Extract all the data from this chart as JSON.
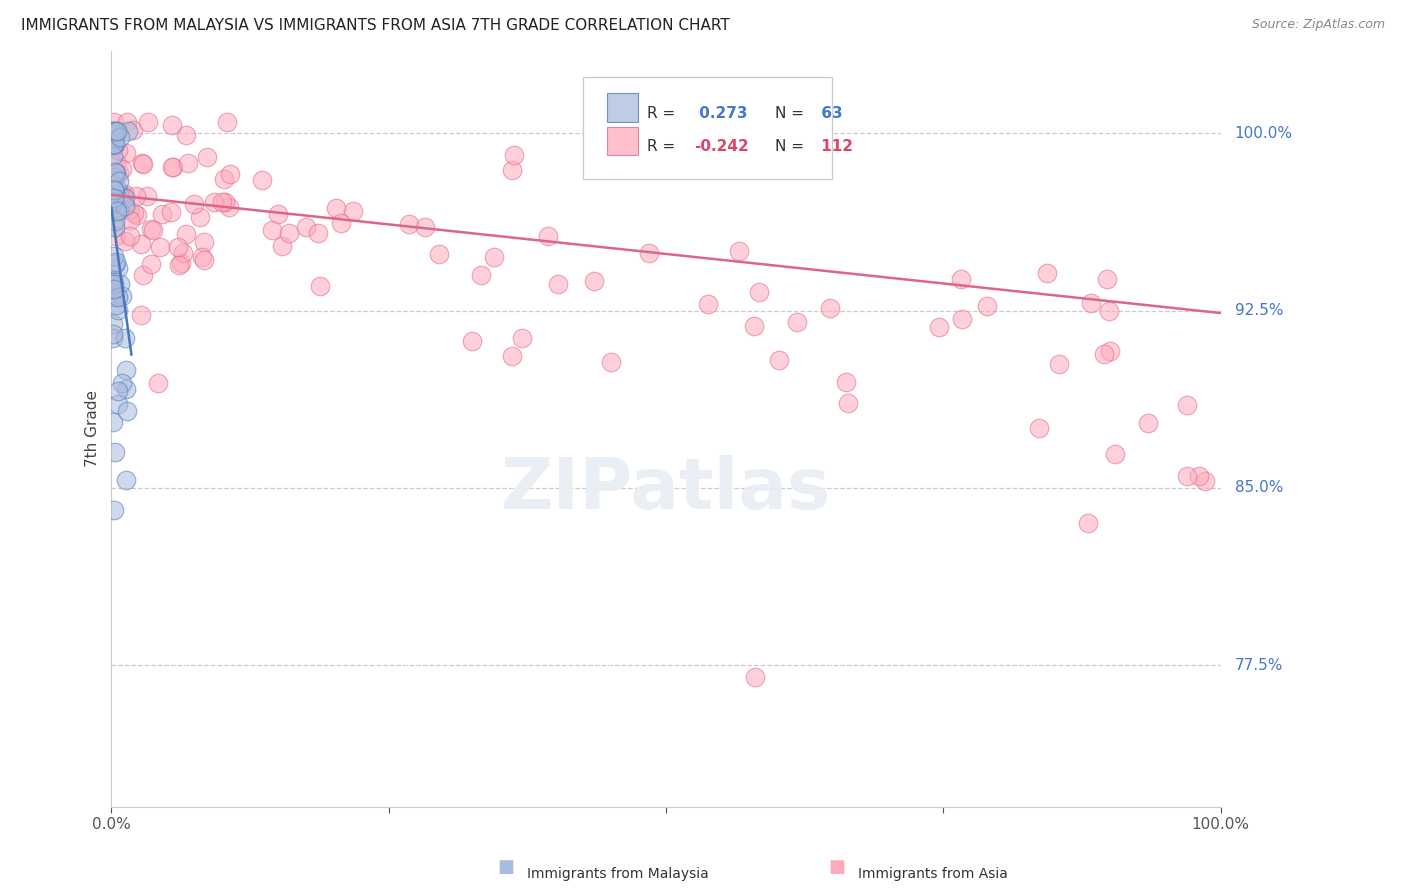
{
  "title": "IMMIGRANTS FROM MALAYSIA VS IMMIGRANTS FROM ASIA 7TH GRADE CORRELATION CHART",
  "source": "Source: ZipAtlas.com",
  "ylabel": "7th Grade",
  "ytick_labels": [
    "100.0%",
    "92.5%",
    "85.0%",
    "77.5%"
  ],
  "ytick_values": [
    1.0,
    0.925,
    0.85,
    0.775
  ],
  "xlim": [
    0.0,
    1.0
  ],
  "ylim": [
    0.715,
    1.035
  ],
  "blue_color": "#4477bb",
  "pink_color": "#dd6688",
  "blue_face_color": "#aabbdd",
  "pink_face_color": "#ffaabb",
  "blue_R": 0.273,
  "blue_N": 63,
  "pink_R": -0.242,
  "pink_N": 112,
  "footer_label_malaysia": "Immigrants from Malaysia",
  "footer_label_asia": "Immigrants from Asia",
  "footer_blue": "#aabbdd",
  "footer_pink": "#ffaabb"
}
